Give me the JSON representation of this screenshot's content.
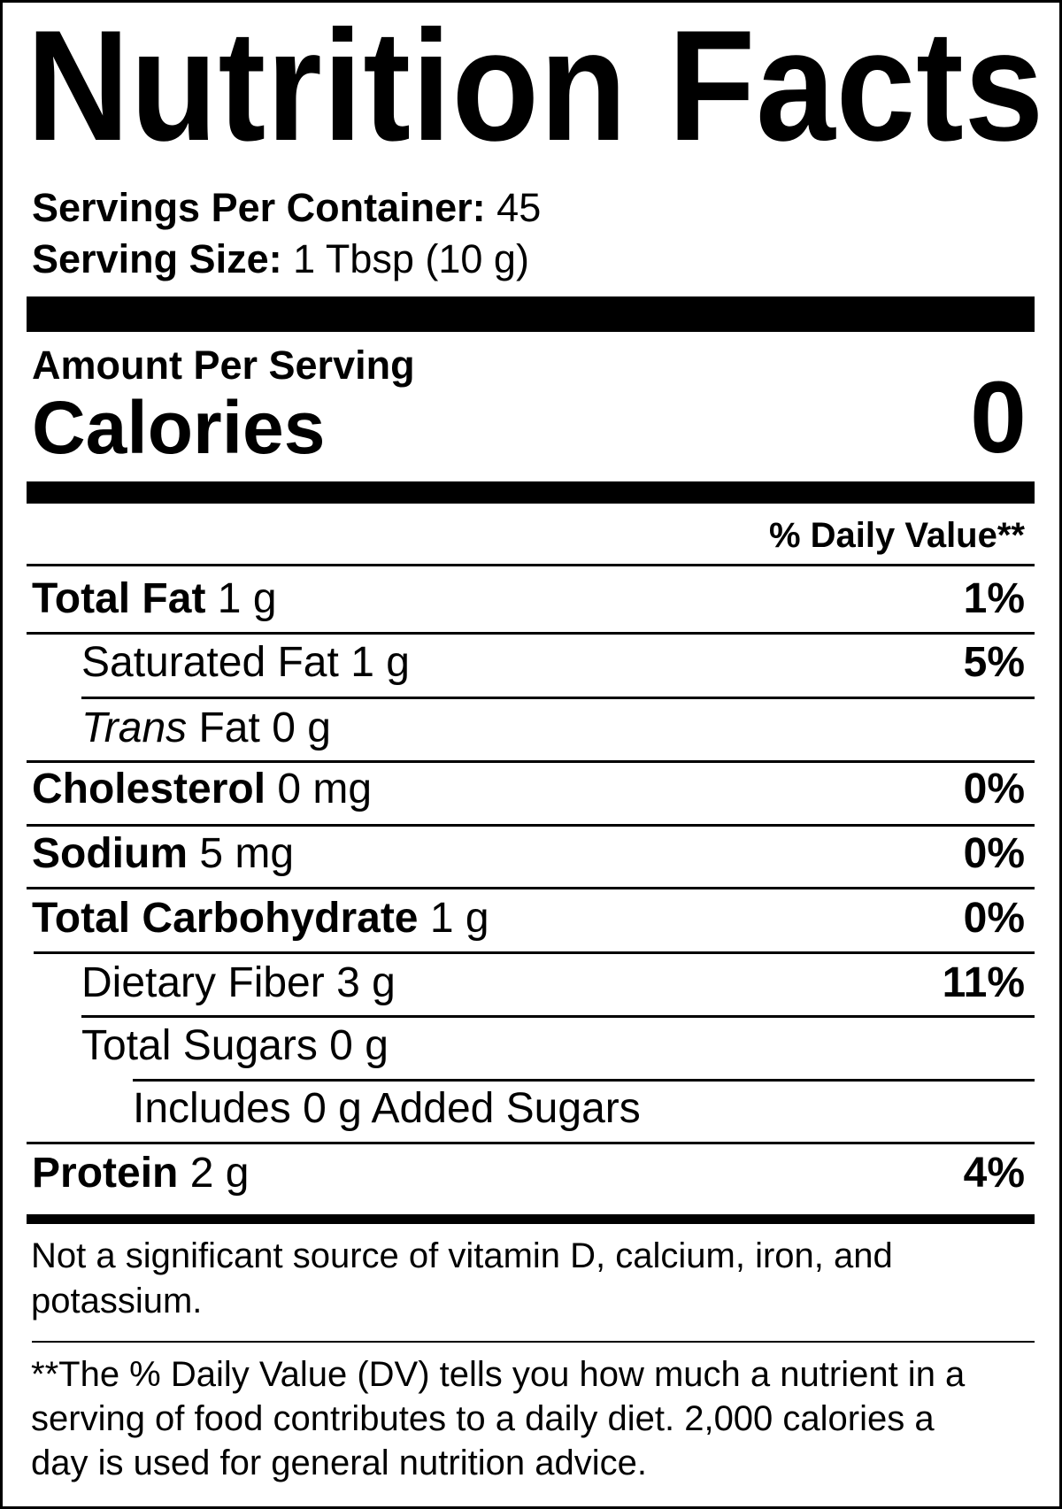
{
  "title": "Nutrition Facts",
  "servings": {
    "label": "Servings Per Container:",
    "value": "45"
  },
  "serving_size": {
    "label": "Serving Size:",
    "value": "1 Tbsp (10 g)"
  },
  "amount_per_serving": "Amount Per Serving",
  "calories": {
    "label": "Calories",
    "value": "0"
  },
  "dv_header": "% Daily Value**",
  "nutrients": [
    {
      "name": "Total Fat",
      "amount": "1 g",
      "dv": "1%"
    },
    {
      "name": "Saturated Fat",
      "amount": "1 g",
      "dv": "5%"
    },
    {
      "name": "Trans",
      "name_rest": "Fat",
      "amount": "0 g",
      "dv": ""
    },
    {
      "name": "Cholesterol",
      "amount": "0 mg",
      "dv": "0%"
    },
    {
      "name": "Sodium",
      "amount": "5 mg",
      "dv": "0%"
    },
    {
      "name": "Total Carbohydrate",
      "amount": "1 g",
      "dv": "0%"
    },
    {
      "name": "Dietary Fiber",
      "amount": "3 g",
      "dv": "11%"
    },
    {
      "name": "Total Sugars",
      "amount": "0 g",
      "dv": ""
    },
    {
      "name": "Includes 0 g Added Sugars",
      "amount": "",
      "dv": ""
    },
    {
      "name": "Protein",
      "amount": "2 g",
      "dv": "4%"
    }
  ],
  "not_significant": [
    "Not a significant source of vitamin D, calcium, iron, and",
    "potassium."
  ],
  "footnote": [
    "**The % Daily Value (DV) tells you how much a nutrient in a",
    "serving of food contributes to a daily diet. 2,000 calories a",
    "day is used for general nutrition advice."
  ]
}
